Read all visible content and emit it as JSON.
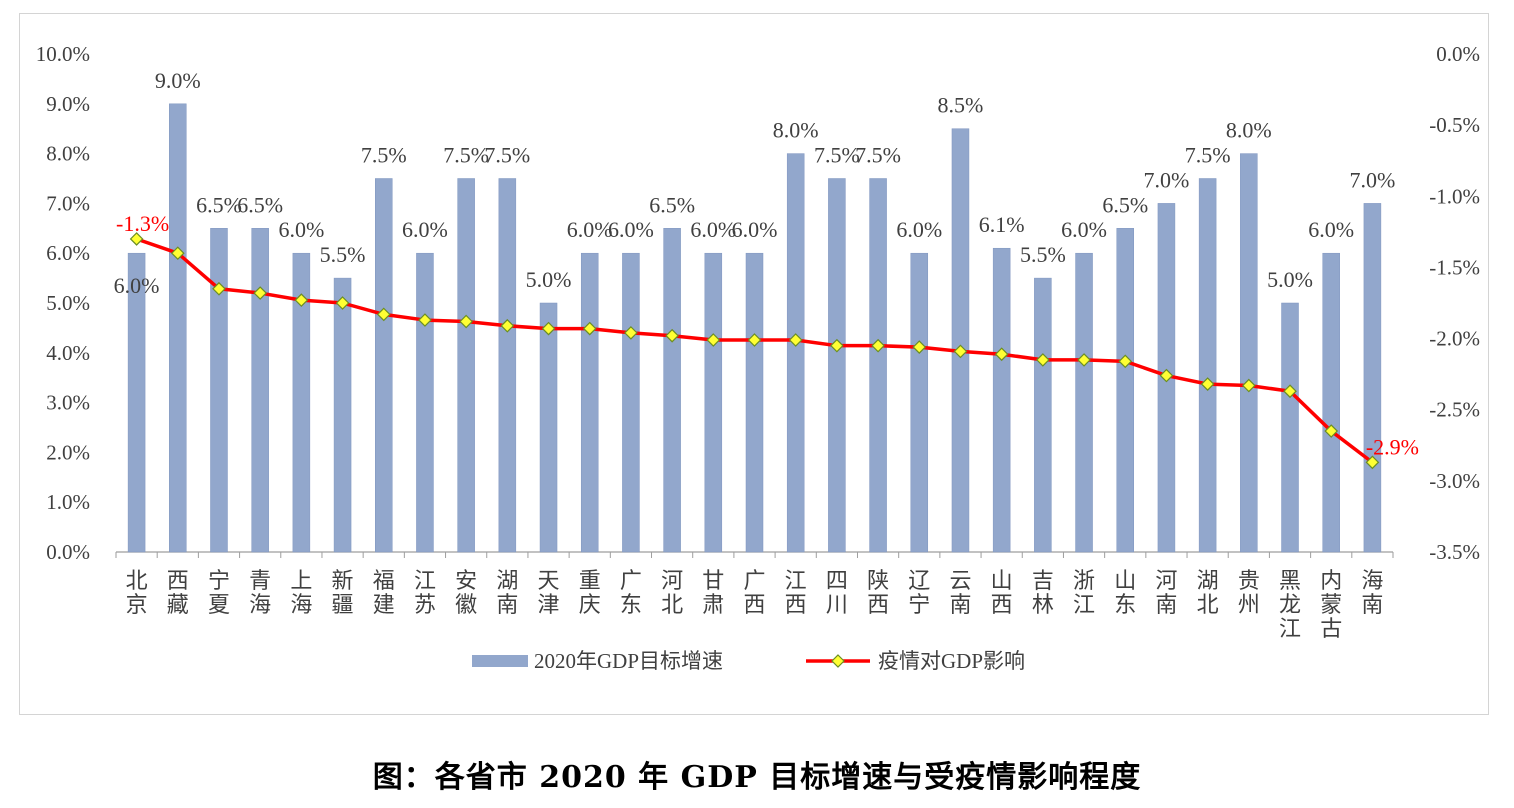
{
  "caption": "图：各省市 2020 年 GDP 目标增速与受疫情影响程度",
  "colors": {
    "bar": "#92a7cc",
    "bar_stroke": "#7f95bf",
    "line": "#ff0000",
    "marker_fill": "#ffff33",
    "marker_stroke": "#6b8e23",
    "first_last_label": "#ff0000",
    "axis": "#9e9e9e",
    "text": "#404040"
  },
  "chart_data": {
    "type": "bar",
    "categories": [
      "北京",
      "西藏",
      "宁夏",
      "青海",
      "上海",
      "新疆",
      "福建",
      "江苏",
      "安徽",
      "湖南",
      "天津",
      "重庆",
      "广东",
      "河北",
      "甘肃",
      "广西",
      "江西",
      "四川",
      "陕西",
      "辽宁",
      "云南",
      "山西",
      "吉林",
      "浙江",
      "山东",
      "河南",
      "湖北",
      "贵州",
      "黑龙江",
      "内蒙古",
      "海南"
    ],
    "series": [
      {
        "name": "2020年GDP目标增速",
        "type": "bar",
        "axis": "left",
        "values": [
          6.0,
          9.0,
          6.5,
          6.5,
          6.0,
          5.5,
          7.5,
          6.0,
          7.5,
          7.5,
          5.0,
          6.0,
          6.0,
          6.5,
          6.0,
          6.0,
          8.0,
          7.5,
          7.5,
          6.0,
          8.5,
          6.1,
          5.5,
          6.0,
          6.5,
          7.0,
          7.5,
          8.0,
          5.0,
          6.0,
          7.0
        ],
        "labels": [
          "6.0%",
          "9.0%",
          "6.5%",
          "6.5%",
          "6.0%",
          "5.5%",
          "7.5%",
          "6.0%",
          "7.5%",
          "7.5%",
          "5.0%",
          "6.0%",
          "6.0%",
          "6.5%",
          "6.0%",
          "6.0%",
          "8.0%",
          "7.5%",
          "7.5%",
          "6.0%",
          "8.5%",
          "6.1%",
          "5.5%",
          "6.0%",
          "6.5%",
          "7.0%",
          "7.5%",
          "8.0%",
          "5.0%",
          "6.0%",
          "7.0%"
        ]
      },
      {
        "name": "疫情对GDP影响",
        "type": "line",
        "axis": "right",
        "values": [
          -1.3,
          -1.4,
          -1.65,
          -1.68,
          -1.73,
          -1.75,
          -1.83,
          -1.87,
          -1.88,
          -1.91,
          -1.93,
          -1.93,
          -1.96,
          -1.98,
          -2.01,
          -2.01,
          -2.01,
          -2.05,
          -2.05,
          -2.06,
          -2.09,
          -2.11,
          -2.15,
          -2.15,
          -2.16,
          -2.26,
          -2.32,
          -2.33,
          -2.37,
          -2.65,
          -2.87
        ],
        "labels": [
          "-1.3%",
          "",
          "",
          "",
          "",
          "",
          "",
          "",
          "",
          "",
          "",
          "",
          "",
          "",
          "",
          "",
          "",
          "",
          "",
          "",
          "",
          "",
          "",
          "",
          "",
          "",
          "",
          "",
          "",
          "",
          "-2.9%"
        ]
      }
    ],
    "y_left": {
      "min": 0,
      "max": 10,
      "step": 1,
      "ticks": [
        "0.0%",
        "1.0%",
        "2.0%",
        "3.0%",
        "4.0%",
        "5.0%",
        "6.0%",
        "7.0%",
        "8.0%",
        "9.0%",
        "10.0%"
      ]
    },
    "y_right": {
      "min": -3.5,
      "max": 0,
      "step": 0.5,
      "ticks": [
        "-3.5%",
        "-3.0%",
        "-2.5%",
        "-2.0%",
        "-1.5%",
        "-1.0%",
        "-0.5%",
        "0.0%"
      ]
    },
    "grid": false,
    "legend_position": "bottom"
  }
}
